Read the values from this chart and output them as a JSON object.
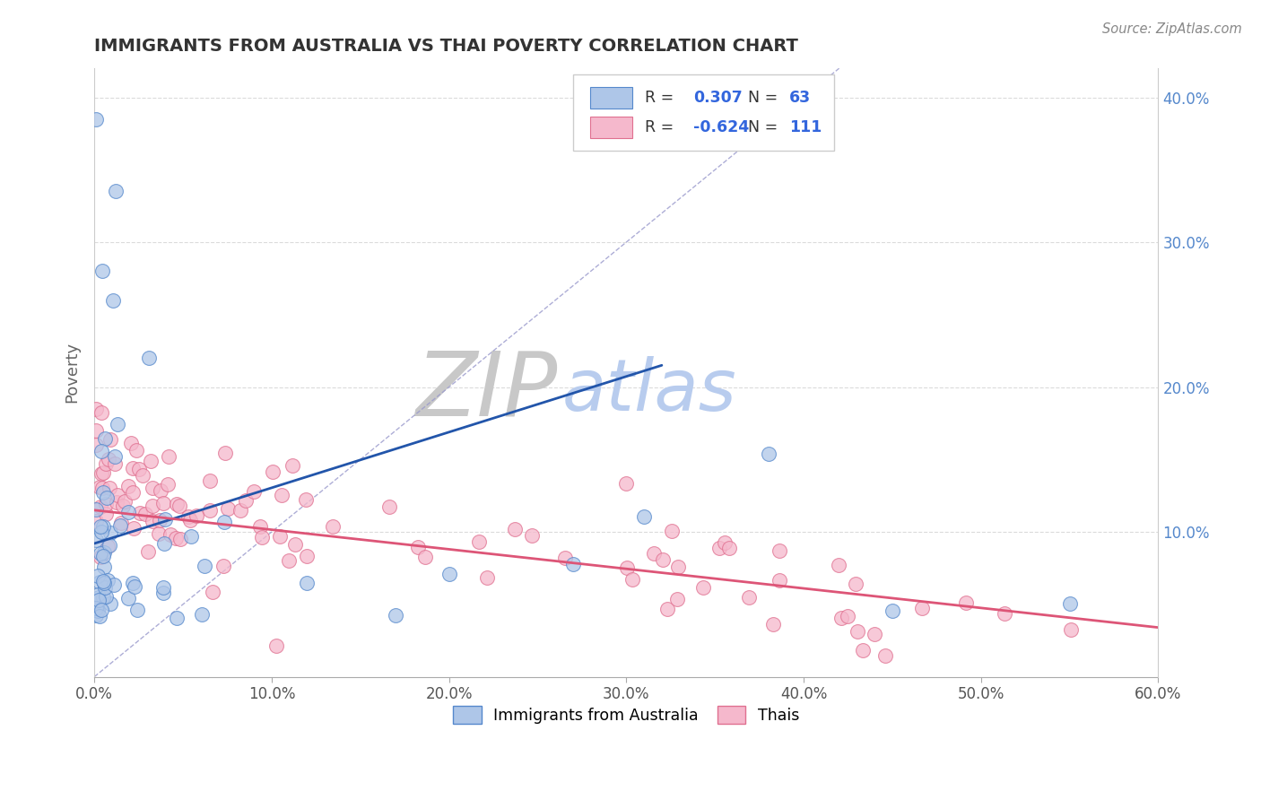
{
  "title": "IMMIGRANTS FROM AUSTRALIA VS THAI POVERTY CORRELATION CHART",
  "source_text": "Source: ZipAtlas.com",
  "ylabel": "Poverty",
  "xlim": [
    0.0,
    0.6
  ],
  "ylim": [
    0.0,
    0.42
  ],
  "xticks": [
    0.0,
    0.1,
    0.2,
    0.3,
    0.4,
    0.5,
    0.6
  ],
  "yticks_right": [
    0.1,
    0.2,
    0.3,
    0.4
  ],
  "blue_fill_color": "#aec6e8",
  "blue_edge_color": "#5588cc",
  "pink_fill_color": "#f5b8cc",
  "pink_edge_color": "#e07090",
  "blue_line_color": "#2255aa",
  "pink_line_color": "#dd5577",
  "diag_color": "#9999cc",
  "R_blue": 0.307,
  "N_blue": 63,
  "R_pink": -0.624,
  "N_pink": 111,
  "legend_label_blue": "Immigrants from Australia",
  "legend_label_pink": "Thais",
  "zip_color": "#c8c8c8",
  "atlas_color": "#b8ccee",
  "title_color": "#333333",
  "source_color": "#888888",
  "ylabel_color": "#666666",
  "tick_color": "#555555",
  "right_tick_color": "#5588cc",
  "grid_color": "#cccccc"
}
